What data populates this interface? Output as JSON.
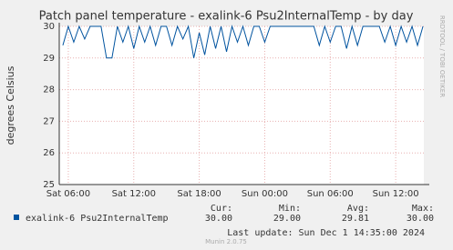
{
  "chart_data": {
    "type": "line",
    "title": "Patch panel temperature - exalink-6 Psu2InternalTemp - by day",
    "y_label": "degrees Celsius",
    "side_text": "RRDTOOL / TOBI OETIKER",
    "footer": "Munin 2.0.75",
    "xlim": [
      5.17,
      38.58
    ],
    "xticks": [
      {
        "value": 6,
        "label": "Sat 06:00"
      },
      {
        "value": 12,
        "label": "Sat 12:00"
      },
      {
        "value": 18,
        "label": "Sat 18:00"
      },
      {
        "value": 24,
        "label": "Sun 00:00"
      },
      {
        "value": 30,
        "label": "Sun 06:00"
      },
      {
        "value": 36,
        "label": "Sun 12:00"
      }
    ],
    "ylim": [
      25,
      30
    ],
    "yticks": [
      25,
      26,
      27,
      28,
      29,
      30
    ],
    "grid": true,
    "x": [
      5.5,
      6,
      6.5,
      7,
      7.5,
      8,
      8.5,
      9,
      9.5,
      10,
      10.5,
      11,
      11.5,
      12,
      12.5,
      13,
      13.5,
      14,
      14.5,
      15,
      15.5,
      16,
      16.5,
      17,
      17.5,
      18,
      18.5,
      19,
      19.5,
      20,
      20.5,
      21,
      21.5,
      22,
      22.5,
      23,
      23.5,
      24,
      24.5,
      25,
      25.5,
      26,
      26.5,
      27,
      27.5,
      28,
      28.5,
      29,
      29.5,
      30,
      30.5,
      31,
      31.5,
      32,
      32.5,
      33,
      33.5,
      34,
      34.5,
      35,
      35.5,
      36,
      36.5,
      37,
      37.5,
      38,
      38.5
    ],
    "series": [
      {
        "name": "exalink-6 Psu2InternalTemp",
        "color": "#00539f",
        "values": [
          29.4,
          30,
          29.5,
          30,
          29.6,
          30,
          30,
          30,
          29.0,
          29.0,
          30,
          29.5,
          30,
          29.3,
          30,
          29.5,
          30,
          29.4,
          30,
          30,
          29.4,
          30,
          29.6,
          30,
          29.0,
          29.8,
          29.1,
          30,
          29.3,
          30,
          29.2,
          30,
          29.5,
          30,
          29.4,
          30,
          30,
          29.5,
          30,
          30,
          30,
          30,
          30,
          30,
          30,
          30,
          30,
          29.4,
          30,
          29.5,
          30,
          30,
          29.3,
          30,
          29.4,
          30,
          30,
          30,
          30,
          29.5,
          30,
          29.4,
          30,
          29.5,
          30,
          29.4,
          30
        ]
      }
    ],
    "legend_stats": {
      "headers": [
        "Cur:",
        "Min:",
        "Avg:",
        "Max:"
      ],
      "values": [
        "30.00",
        "29.00",
        "29.81",
        "30.00"
      ]
    },
    "last_update": "Last update: Sun Dec  1 14:35:00 2024"
  }
}
